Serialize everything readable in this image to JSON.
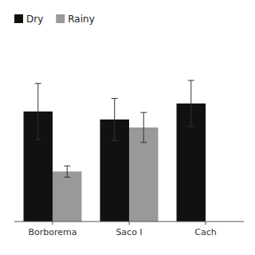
{
  "chart_data": {
    "type": "bar",
    "categories": [
      "Borborema",
      "Saco I",
      "Cach"
    ],
    "series": [
      {
        "name": "Dry",
        "color": "#111111",
        "values": [
          5.5,
          5.1,
          5.9
        ],
        "errors": [
          1.4,
          1.05,
          1.15
        ]
      },
      {
        "name": "Rainy",
        "color": "#999999",
        "values": [
          2.5,
          4.7,
          0.0
        ],
        "errors": [
          0.28,
          0.75,
          0.0
        ]
      }
    ],
    "ylim": [
      0,
      9.0
    ],
    "tick_labels": "x",
    "legend": "top-left",
    "grid": false
  }
}
